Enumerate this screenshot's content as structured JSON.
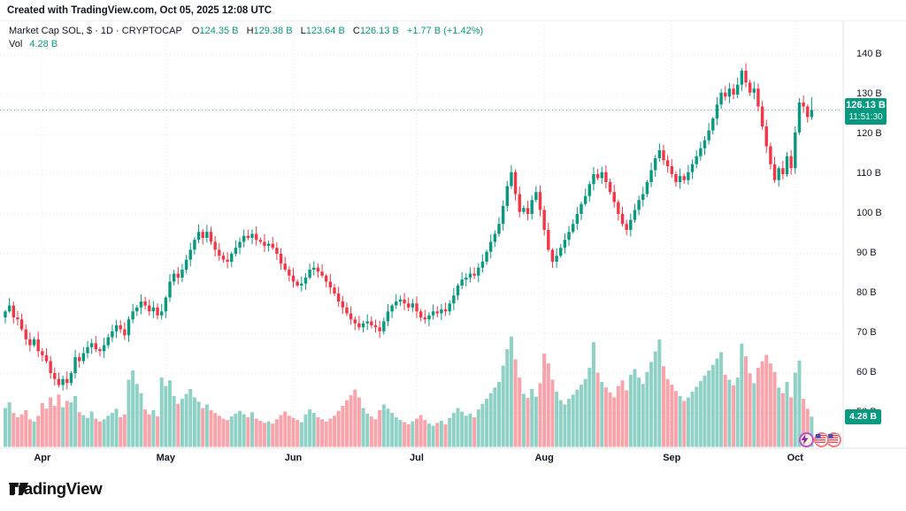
{
  "attribution": "Created with TradingView.com, Oct 05, 2025 12:08 UTC",
  "legend": {
    "title": "Market Cap SOL, $ · 1D · CRYPTOCAP",
    "ohlc": [
      {
        "label": "O",
        "value": "124.35 B"
      },
      {
        "label": "H",
        "value": "129.38 B"
      },
      {
        "label": "L",
        "value": "123.64 B"
      },
      {
        "label": "C",
        "value": "126.13 B"
      }
    ],
    "change": "+1.77 B (+1.42%)",
    "vol_label": "Vol",
    "vol_value": "4.28 B"
  },
  "price_scale": {
    "ticks": [
      140,
      130,
      120,
      110,
      100,
      90,
      80,
      70,
      60,
      50
    ],
    "suffix": " B",
    "last_price_badge": {
      "price_text": "126.13 B",
      "countdown": "11:51:30"
    },
    "volume_badge": "4.28 B"
  },
  "time_scale": {
    "months": [
      {
        "label": "Apr",
        "day_index": 9
      },
      {
        "label": "May",
        "day_index": 39
      },
      {
        "label": "Jun",
        "day_index": 70
      },
      {
        "label": "Jul",
        "day_index": 100
      },
      {
        "label": "Aug",
        "day_index": 131
      },
      {
        "label": "Sep",
        "day_index": 162
      },
      {
        "label": "Oct",
        "day_index": 192
      }
    ]
  },
  "footer": {
    "brand": "TradingView"
  },
  "colors": {
    "up": "#089981",
    "down": "#f23645",
    "up_volume": "rgba(8,153,129,0.45)",
    "down_volume": "rgba(242,54,69,0.45)",
    "badge": "#089981",
    "grid": "#e7eaf1",
    "last_price_line": "#089981",
    "text": "#131722",
    "axis_border": "#e0e3eb"
  },
  "chart_data": {
    "type": "candlestick+volume",
    "symbol": "Market Cap SOL",
    "currency": "$",
    "interval": "1D",
    "source": "CRYPTOCAP",
    "unit": "billions USD",
    "start_date": "2025-03-23",
    "end_date": "2025-10-05",
    "ylim": [
      41,
      148
    ],
    "y_ticks": [
      50,
      60,
      70,
      80,
      90,
      100,
      110,
      120,
      130,
      140
    ],
    "grid": true,
    "last": {
      "open": 124.35,
      "high": 129.38,
      "low": 123.64,
      "close": 126.13,
      "volume": 4.28
    },
    "change_abs": "+1.77 B",
    "change_pct": "+1.42%",
    "closes": [
      75.5,
      77,
      74,
      73.5,
      71,
      68.5,
      67,
      68.5,
      65.5,
      64.5,
      63,
      60,
      58.5,
      57,
      58.5,
      57.5,
      60,
      64,
      63,
      65,
      66.5,
      67.5,
      66,
      65.5,
      67,
      69,
      70.5,
      72,
      71,
      69.5,
      73.5,
      75.5,
      76.5,
      78,
      77,
      75.5,
      76.5,
      74.5,
      75.5,
      79,
      83,
      85,
      84,
      86,
      88.5,
      91,
      93.5,
      95.5,
      94,
      95.5,
      93,
      91,
      89.5,
      88.5,
      88,
      90,
      91.5,
      93,
      94.5,
      94,
      95,
      93.5,
      93,
      92,
      92.5,
      91.5,
      90,
      87.5,
      86,
      84.5,
      83,
      82,
      82.5,
      84,
      86,
      86.5,
      85.5,
      84.5,
      83,
      81.5,
      80,
      78,
      76.5,
      75,
      73.5,
      72.5,
      71.5,
      72.5,
      73,
      72,
      71.5,
      70.5,
      73,
      75.5,
      77,
      78,
      78.5,
      77.5,
      76.5,
      77.5,
      75.5,
      74,
      73.5,
      74.5,
      75.5,
      75,
      76,
      75.5,
      77.5,
      79.5,
      82,
      83.5,
      84,
      85,
      84.5,
      86.5,
      88,
      90.5,
      93,
      95,
      97.5,
      102,
      107,
      110.5,
      105,
      100.5,
      101.5,
      100,
      103.5,
      105.5,
      101,
      96,
      91,
      88,
      89.5,
      91.5,
      93.5,
      95.5,
      97.5,
      100,
      102.5,
      104.5,
      107.5,
      110,
      109,
      110.5,
      108,
      105.5,
      103,
      100,
      97.5,
      96,
      98.5,
      101,
      103.5,
      105,
      108,
      111,
      114,
      116,
      113.5,
      112,
      110,
      108,
      109.5,
      108.5,
      110.5,
      112.5,
      114.5,
      116.5,
      118.5,
      121,
      124,
      127.5,
      130.5,
      129.5,
      131.5,
      130,
      132.5,
      136,
      133,
      130.5,
      131.5,
      127,
      122,
      117,
      112.5,
      108.5,
      111.5,
      110,
      114.5,
      111.5,
      120.5,
      128,
      127,
      124.35,
      126.13
    ],
    "volumes": [
      5.5,
      6.3,
      4.8,
      4.2,
      4.6,
      5.2,
      3.9,
      3.6,
      4.4,
      6.2,
      5.4,
      7.0,
      5.8,
      7.4,
      5.6,
      6.5,
      6.3,
      7.2,
      4.9,
      4.5,
      4.1,
      5.0,
      4.0,
      3.6,
      3.9,
      4.4,
      4.8,
      5.4,
      4.2,
      4.6,
      9.5,
      10.8,
      8.9,
      7.6,
      5.3,
      4.6,
      5.2,
      4.3,
      9.8,
      8.6,
      9.4,
      7.2,
      6.1,
      6.8,
      7.5,
      8.2,
      7.0,
      6.4,
      5.5,
      6.0,
      5.2,
      4.8,
      4.4,
      4.0,
      3.8,
      4.3,
      4.7,
      5.1,
      4.6,
      4.2,
      4.9,
      4.0,
      3.7,
      3.4,
      3.6,
      3.3,
      3.9,
      4.5,
      5.0,
      4.4,
      4.1,
      3.8,
      3.5,
      4.6,
      5.3,
      4.8,
      4.2,
      3.9,
      3.6,
      4.0,
      4.4,
      5.1,
      5.8,
      6.6,
      7.3,
      8.1,
      7.0,
      5.5,
      4.7,
      4.3,
      3.9,
      5.2,
      6.0,
      5.4,
      4.8,
      4.2,
      3.8,
      3.5,
      3.2,
      3.6,
      4.0,
      4.5,
      3.8,
      3.3,
      3.0,
      3.4,
      3.7,
      3.2,
      4.1,
      4.8,
      5.5,
      5.0,
      4.4,
      4.7,
      4.2,
      5.3,
      6.1,
      6.8,
      7.6,
      8.4,
      9.2,
      11.5,
      13.8,
      15.6,
      12.4,
      9.8,
      7.5,
      6.9,
      8.2,
      7.1,
      9.0,
      13.2,
      11.8,
      9.5,
      7.8,
      6.6,
      6.0,
      6.8,
      7.4,
      8.1,
      8.8,
      9.6,
      11.2,
      14.8,
      10.5,
      9.2,
      8.4,
      7.7,
      7.0,
      8.6,
      9.4,
      8.0,
      10.2,
      11.0,
      9.8,
      8.9,
      10.6,
      12.0,
      13.5,
      15.2,
      11.4,
      9.6,
      8.8,
      7.9,
      7.2,
      6.5,
      7.0,
      7.8,
      8.5,
      9.3,
      10.1,
      10.8,
      11.6,
      12.5,
      13.4,
      10.2,
      9.5,
      8.7,
      9.8,
      14.6,
      12.8,
      10.4,
      9.0,
      11.2,
      12.1,
      13.0,
      11.8,
      10.6,
      8.4,
      7.6,
      9.2,
      7.0,
      10.5,
      12.2,
      6.8,
      5.4,
      4.28
    ]
  }
}
